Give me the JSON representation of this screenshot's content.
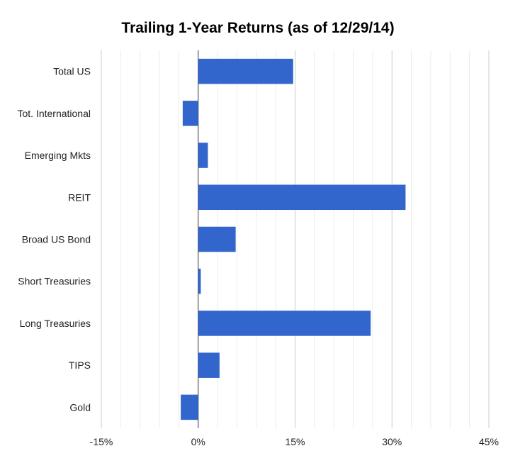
{
  "chart_data": {
    "type": "bar",
    "orientation": "horizontal",
    "title": "Trailing 1-Year Returns (as of 12/29/14)",
    "xlabel": "",
    "ylabel": "",
    "categories": [
      "Total US",
      "Tot. International",
      "Emerging Mkts",
      "REIT",
      "Broad US Bond",
      "Short Treasuries",
      "Long Treasuries",
      "TIPS",
      "Gold"
    ],
    "values": [
      14.7,
      -2.4,
      1.5,
      32.1,
      5.8,
      0.4,
      26.7,
      3.3,
      -2.7
    ],
    "x_ticks": [
      -15,
      0,
      15,
      30,
      45
    ],
    "x_tick_labels": [
      "-15%",
      "0%",
      "15%",
      "30%",
      "45%"
    ],
    "xlim": [
      -15,
      45
    ],
    "grid": true,
    "minor_gridlines": true,
    "bar_color": "#3366cc",
    "legend": "none"
  }
}
